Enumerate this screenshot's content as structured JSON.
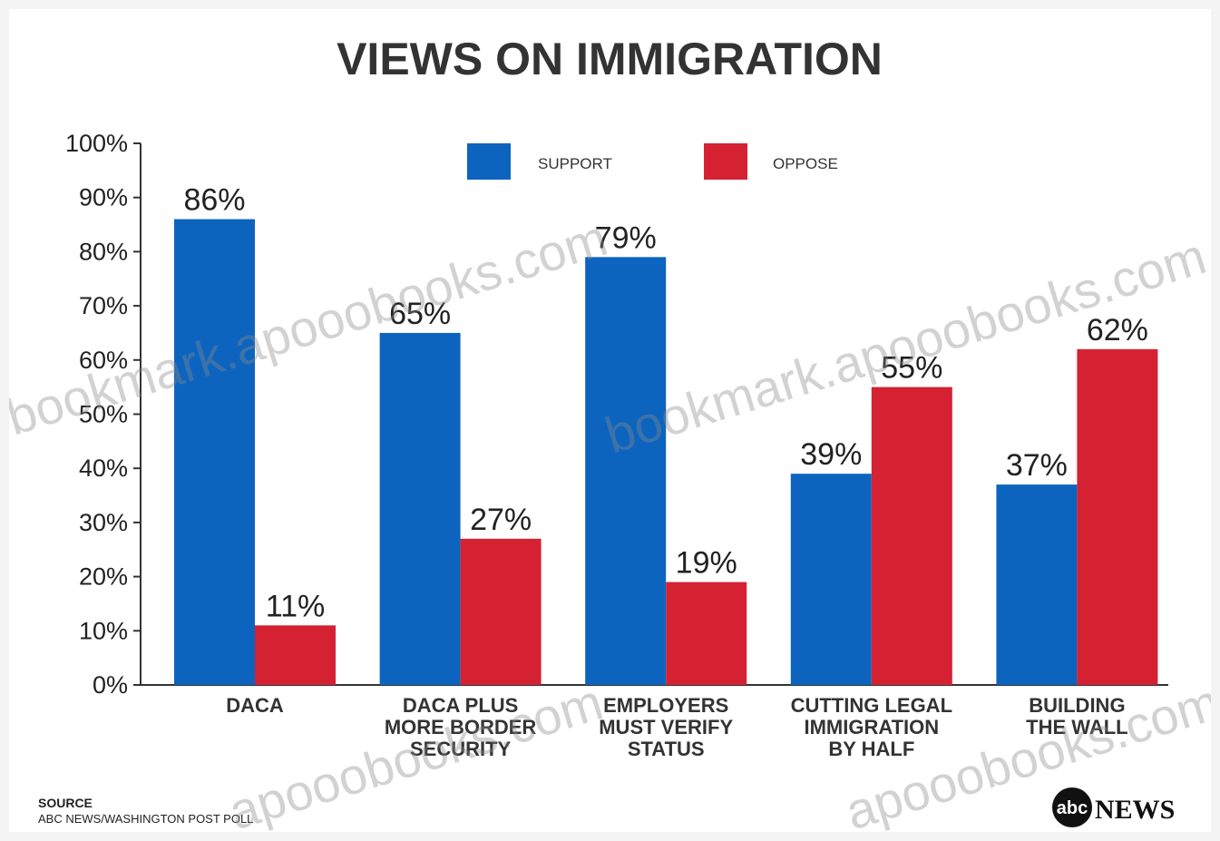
{
  "chart_data": {
    "type": "bar",
    "title": "VIEWS ON IMMIGRATION",
    "categories": [
      [
        "DACA"
      ],
      [
        "DACA PLUS",
        "MORE BORDER",
        "SECURITY"
      ],
      [
        "EMPLOYERS",
        "MUST VERIFY",
        "STATUS"
      ],
      [
        "CUTTING LEGAL",
        "IMMIGRATION",
        "BY HALF"
      ],
      [
        "BUILDING",
        "THE WALL"
      ]
    ],
    "series": [
      {
        "name": "SUPPORT",
        "values": [
          86,
          65,
          79,
          39,
          37
        ],
        "color": "#0d64bf"
      },
      {
        "name": "OPPOSE",
        "values": [
          11,
          27,
          19,
          55,
          62
        ],
        "color": "#d42233"
      }
    ],
    "ylim": [
      0,
      100
    ],
    "yticks": [
      "0%",
      "10%",
      "20%",
      "30%",
      "40%",
      "50%",
      "60%",
      "70%",
      "80%",
      "90%",
      "100%"
    ],
    "value_suffix": "%",
    "legend_position": "top-center",
    "grid": false
  },
  "source": {
    "heading": "SOURCE",
    "text": "ABC NEWS/WASHINGTON POST POLL"
  },
  "logo": {
    "badge": "abc",
    "text": "NEWS"
  },
  "watermarks": [
    "bookmark.apooobooks.com",
    "bookmark.apooobooks.com",
    "apooobooks.com",
    "apooobooks.com"
  ]
}
